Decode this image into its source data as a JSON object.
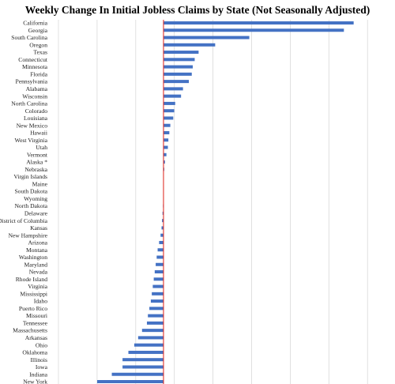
{
  "chart_data": {
    "type": "bar",
    "orientation": "horizontal",
    "title": "Weekly Change In Initial Jobless Claims by State (Not Seasonally Adjusted)",
    "xlabel": "",
    "ylabel": "",
    "grid": true,
    "legend": "none",
    "bar_color": "#4472c4",
    "zero_line_color": "#e0312b",
    "xlim": [
      -11.5,
      20.5
    ],
    "categories": [
      "California",
      "Georgia",
      "South Carolina",
      "Oregon",
      "Texas",
      "Connecticut",
      "Minnesota",
      "Florida",
      "Pennsylvania",
      "Alabama",
      "Wisconsin",
      "North Carolina",
      "Colorado",
      "Louisiana",
      "New Mexico",
      "Hawaii",
      "West Virginia",
      "Utah",
      "Vermont",
      "Alaska *",
      "Nebraska",
      "Virgin Islands",
      "Maine",
      "South Dakota",
      "Wyoming",
      "North Dakota",
      "Delaware",
      "District of Columbia",
      "Kansas",
      "New Hampshire",
      "Arizona",
      "Montana",
      "Washington",
      "Maryland",
      "Nevada",
      "Rhode Island",
      "Virginia",
      "Mississippi",
      "Idaho",
      "Puerto Rico",
      "Missouri",
      "Tennessee",
      "Massachusetts",
      "Arkansas",
      "Ohio",
      "Oklahoma",
      "Illinois",
      "Iowa",
      "Indiana",
      "New York"
    ],
    "values": [
      19.5,
      18.5,
      8.8,
      5.3,
      3.6,
      3.2,
      3.0,
      2.9,
      2.6,
      2.0,
      1.8,
      1.2,
      1.1,
      1.0,
      0.7,
      0.6,
      0.5,
      0.45,
      0.3,
      0.15,
      0.08,
      0.0,
      0.0,
      0.0,
      0.0,
      -0.05,
      -0.1,
      -0.15,
      -0.2,
      -0.3,
      -0.45,
      -0.6,
      -0.7,
      -0.8,
      -0.9,
      -1.0,
      -1.1,
      -1.2,
      -1.3,
      -1.45,
      -1.6,
      -1.7,
      -2.2,
      -2.6,
      -3.0,
      -3.6,
      -4.2,
      -4.2,
      -5.3,
      -6.8
    ]
  }
}
